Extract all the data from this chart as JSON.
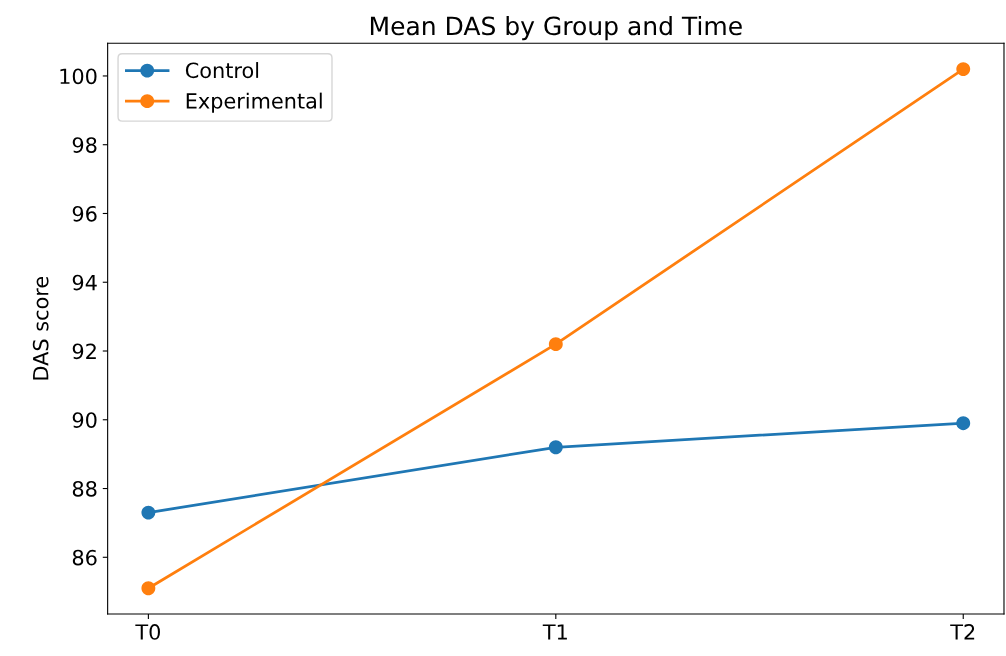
{
  "chart_data": {
    "type": "line",
    "title": "Mean DAS by Group and Time",
    "ylabel": "DAS score",
    "categories": [
      "T0",
      "T1",
      "T2"
    ],
    "series": [
      {
        "name": "Control",
        "color": "#1f77b4",
        "values": [
          87.3,
          89.2,
          89.9
        ]
      },
      {
        "name": "Experimental",
        "color": "#ff7f0e",
        "values": [
          85.1,
          92.2,
          100.2
        ]
      }
    ],
    "ylim": [
      84.35,
      100.95
    ],
    "yticks": [
      86,
      88,
      90,
      92,
      94,
      96,
      98,
      100
    ],
    "marker": "circle",
    "line_style": "solid",
    "legend": "top left",
    "grid": false
  }
}
